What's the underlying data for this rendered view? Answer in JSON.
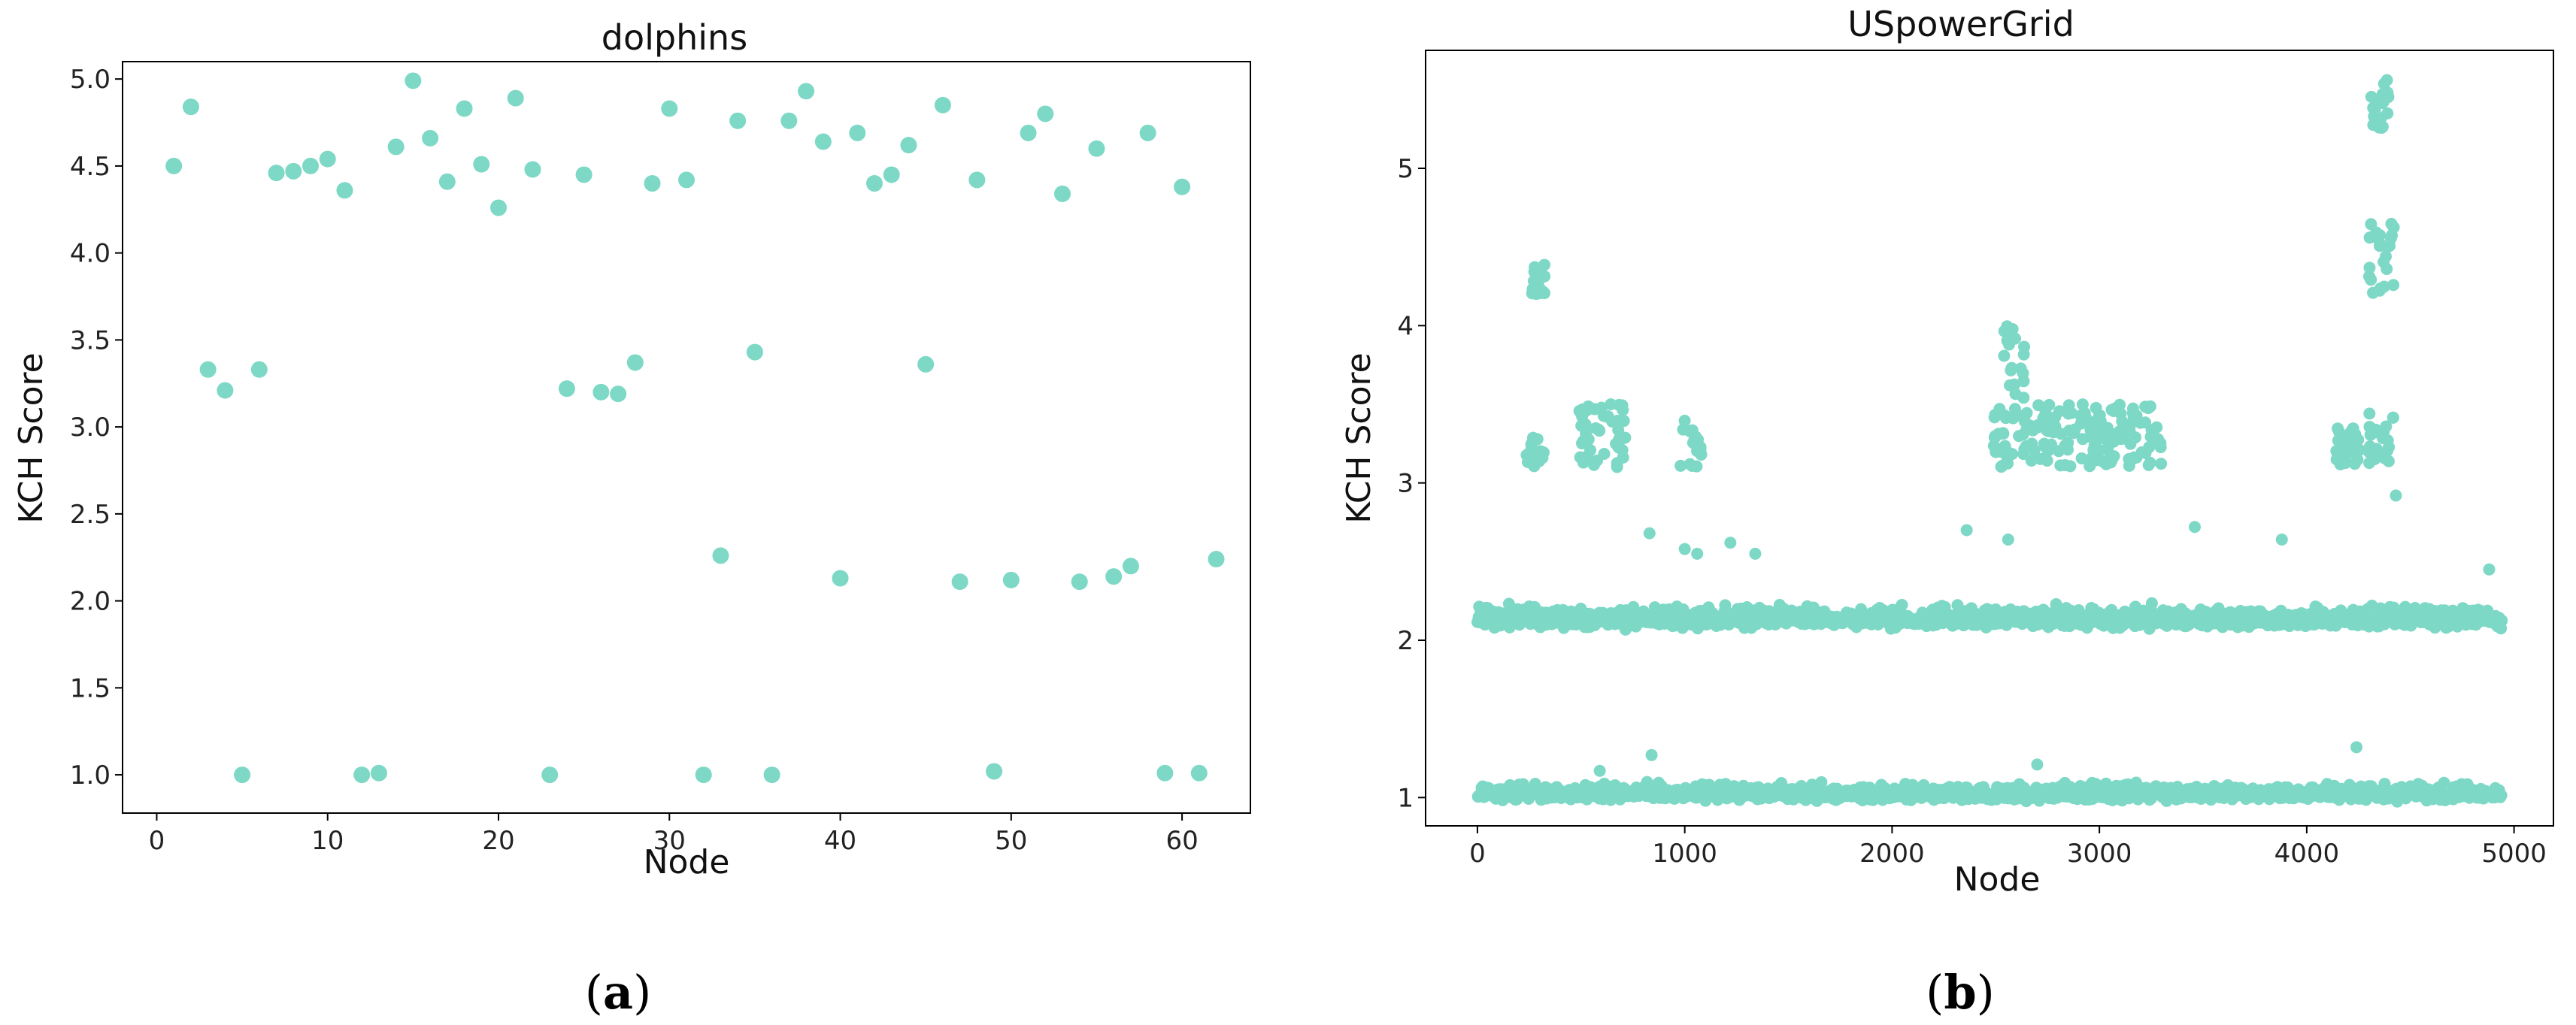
{
  "chart_data": [
    {
      "type": "scatter",
      "title": "dolphins",
      "xlabel": "Node",
      "ylabel": "KCH Score",
      "caption": "a",
      "xlim": [
        -2,
        64
      ],
      "ylim": [
        0.78,
        5.1
      ],
      "xticks": [
        0,
        10,
        20,
        30,
        40,
        50,
        60
      ],
      "yticks": [
        1.0,
        1.5,
        2.0,
        2.5,
        3.0,
        3.5,
        4.0,
        4.5,
        5.0
      ],
      "grid": false,
      "color": "#7dd8c6",
      "points": [
        [
          1,
          4.5
        ],
        [
          2,
          4.84
        ],
        [
          3,
          3.33
        ],
        [
          4,
          3.21
        ],
        [
          5,
          1.0
        ],
        [
          6,
          3.33
        ],
        [
          7,
          4.46
        ],
        [
          8,
          4.47
        ],
        [
          9,
          4.5
        ],
        [
          10,
          4.54
        ],
        [
          11,
          4.36
        ],
        [
          12,
          1.0
        ],
        [
          13,
          1.01
        ],
        [
          14,
          4.61
        ],
        [
          15,
          4.99
        ],
        [
          16,
          4.66
        ],
        [
          17,
          4.41
        ],
        [
          18,
          4.83
        ],
        [
          19,
          4.51
        ],
        [
          20,
          4.26
        ],
        [
          21,
          4.89
        ],
        [
          22,
          4.48
        ],
        [
          23,
          1.0
        ],
        [
          24,
          3.22
        ],
        [
          25,
          4.45
        ],
        [
          26,
          3.2
        ],
        [
          27,
          3.19
        ],
        [
          28,
          3.37
        ],
        [
          29,
          4.4
        ],
        [
          30,
          4.83
        ],
        [
          31,
          4.42
        ],
        [
          32,
          1.0
        ],
        [
          33,
          2.26
        ],
        [
          34,
          4.76
        ],
        [
          35,
          3.43
        ],
        [
          36,
          1.0
        ],
        [
          37,
          4.76
        ],
        [
          38,
          4.93
        ],
        [
          39,
          4.64
        ],
        [
          40,
          2.13
        ],
        [
          41,
          4.69
        ],
        [
          42,
          4.4
        ],
        [
          43,
          4.45
        ],
        [
          44,
          4.62
        ],
        [
          45,
          3.36
        ],
        [
          46,
          4.85
        ],
        [
          47,
          2.11
        ],
        [
          48,
          4.42
        ],
        [
          49,
          1.02
        ],
        [
          50,
          2.12
        ],
        [
          51,
          4.69
        ],
        [
          52,
          4.8
        ],
        [
          53,
          4.34
        ],
        [
          54,
          2.11
        ],
        [
          55,
          4.6
        ],
        [
          56,
          2.14
        ],
        [
          57,
          2.2
        ],
        [
          58,
          4.69
        ],
        [
          59,
          1.01
        ],
        [
          60,
          4.38
        ],
        [
          61,
          1.01
        ],
        [
          62,
          2.24
        ]
      ]
    },
    {
      "type": "scatter",
      "title": "USpowerGrid",
      "xlabel": "Node",
      "ylabel": "KCH Score",
      "caption": "b",
      "xlim": [
        -250,
        5190
      ],
      "ylim": [
        0.82,
        5.75
      ],
      "xticks": [
        0,
        1000,
        2000,
        3000,
        4000,
        5000
      ],
      "yticks": [
        1,
        2,
        3,
        4,
        5
      ],
      "grid": false,
      "color": "#7dd8c6",
      "node_count": 4941,
      "bands": [
        {
          "x_range": [
            0,
            4941
          ],
          "y_center": 1.02,
          "y_spread": 0.09,
          "density": 1.0
        },
        {
          "x_range": [
            0,
            4941
          ],
          "y_center": 2.13,
          "y_spread": 0.12,
          "density": 1.0
        }
      ],
      "clusters": [
        {
          "x_range": [
            230,
            320
          ],
          "y_range": [
            3.1,
            3.3
          ]
        },
        {
          "x_range": [
            260,
            330
          ],
          "y_range": [
            4.2,
            4.4
          ]
        },
        {
          "x_range": [
            480,
            720
          ],
          "y_range": [
            3.1,
            3.5
          ]
        },
        {
          "x_range": [
            980,
            1080
          ],
          "y_range": [
            3.1,
            3.5
          ]
        },
        {
          "x_range": [
            2480,
            3300
          ],
          "y_range": [
            3.1,
            3.5
          ]
        },
        {
          "x_range": [
            2540,
            2640
          ],
          "y_range": [
            3.5,
            4.0
          ]
        },
        {
          "x_range": [
            4130,
            4260
          ],
          "y_range": [
            3.1,
            3.35
          ]
        },
        {
          "x_range": [
            4300,
            4420
          ],
          "y_range": [
            3.1,
            3.45
          ]
        },
        {
          "x_range": [
            4300,
            4420
          ],
          "y_range": [
            4.2,
            4.65
          ]
        },
        {
          "x_range": [
            4310,
            4410
          ],
          "y_range": [
            5.25,
            5.6
          ]
        }
      ],
      "outliers": [
        [
          830,
          2.68
        ],
        [
          1000,
          2.58
        ],
        [
          1060,
          2.55
        ],
        [
          1220,
          2.62
        ],
        [
          1340,
          2.55
        ],
        [
          2360,
          2.7
        ],
        [
          2560,
          2.64
        ],
        [
          3460,
          2.72
        ],
        [
          3880,
          2.64
        ],
        [
          4430,
          2.92
        ],
        [
          4880,
          2.45
        ],
        [
          840,
          1.27
        ],
        [
          4240,
          1.32
        ],
        [
          2700,
          1.21
        ],
        [
          590,
          1.17
        ]
      ]
    }
  ]
}
